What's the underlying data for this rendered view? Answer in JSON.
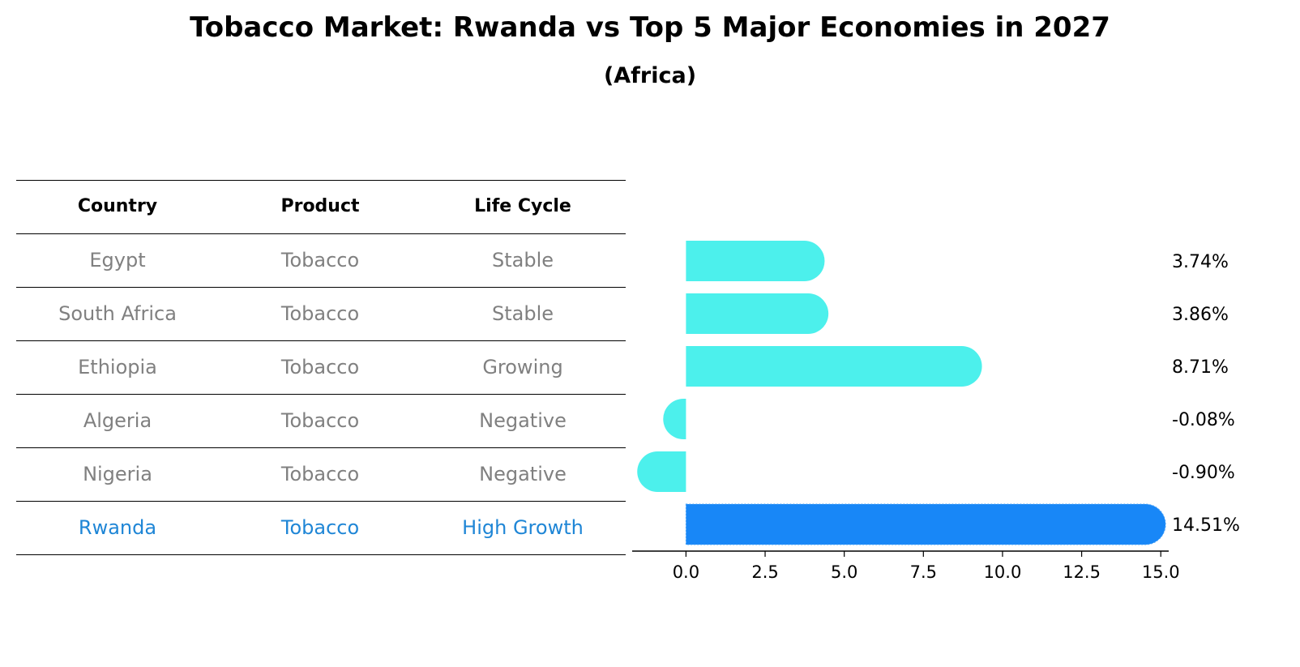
{
  "header": {
    "title": "Tobacco Market: Rwanda vs Top 5 Major Economies in 2027",
    "subtitle": "(Africa)"
  },
  "table": {
    "columns": [
      "Country",
      "Product",
      "Life Cycle"
    ],
    "rows": [
      {
        "country": "Egypt",
        "product": "Tobacco",
        "life_cycle": "Stable"
      },
      {
        "country": "South Africa",
        "product": "Tobacco",
        "life_cycle": "Stable"
      },
      {
        "country": "Ethiopia",
        "product": "Tobacco",
        "life_cycle": "Growing"
      },
      {
        "country": "Algeria",
        "product": "Tobacco",
        "life_cycle": "Negative"
      },
      {
        "country": "Nigeria",
        "product": "Tobacco",
        "life_cycle": "Negative"
      },
      {
        "country": "Rwanda",
        "product": "Tobacco",
        "life_cycle": "High Growth"
      }
    ],
    "highlight_row": "Rwanda",
    "highlight_color": "#1f86d6",
    "text_color": "#808080"
  },
  "chart_data": {
    "type": "bar",
    "orientation": "horizontal",
    "categories": [
      "Egypt",
      "South Africa",
      "Ethiopia",
      "Algeria",
      "Nigeria",
      "Rwanda"
    ],
    "values": [
      3.74,
      3.86,
      8.71,
      -0.08,
      -0.9,
      14.51
    ],
    "value_labels": [
      "3.74%",
      "3.86%",
      "8.71%",
      "-0.08%",
      "-0.90%",
      "14.51%"
    ],
    "xlim": [
      -1.7,
      15.25
    ],
    "xticks": [
      0,
      2.5,
      5,
      7.5,
      10,
      12.5,
      15
    ],
    "xtick_labels": [
      "0.0",
      "2.5",
      "5.0",
      "7.5",
      "10.0",
      "12.5",
      "15.0"
    ],
    "xlabel": "",
    "ylabel": "",
    "grid": false,
    "colors": {
      "default": "#4cf0ec",
      "highlight": "#1887f7"
    },
    "highlight_category": "Rwanda"
  }
}
